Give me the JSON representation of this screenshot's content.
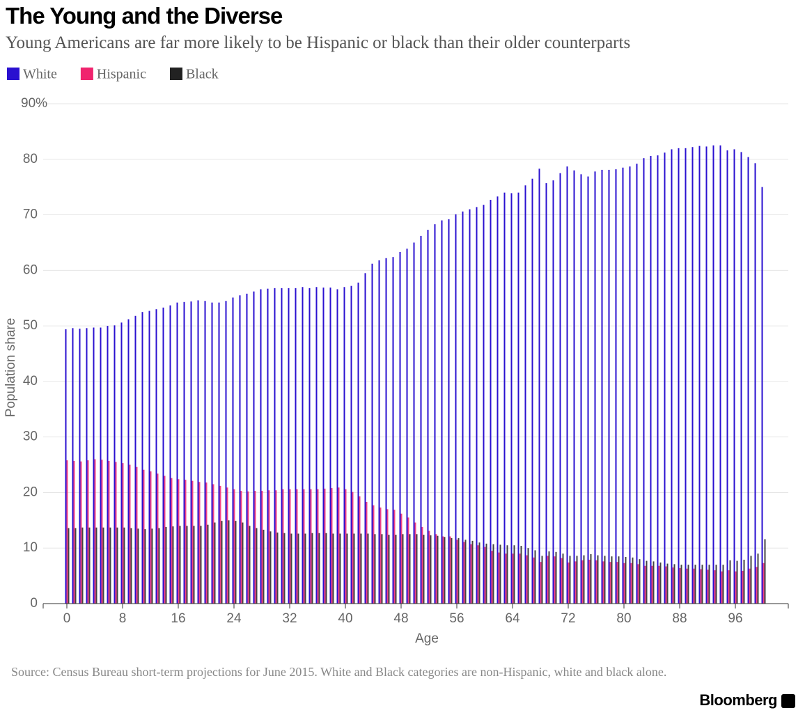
{
  "chart_data": {
    "type": "bar",
    "title": "The Young and the Diverse",
    "subtitle": "Young Americans are far more likely to be Hispanic or black than their older counterparts",
    "x_label": "Age",
    "y_label": "Population share",
    "source": "Source: Census Bureau short-term projections for June 2015. White and Black categories are non-Hispanic, white and black alone.",
    "brand": "Bloomberg",
    "x": [
      0,
      1,
      2,
      3,
      4,
      5,
      6,
      7,
      8,
      9,
      10,
      11,
      12,
      13,
      14,
      15,
      16,
      17,
      18,
      19,
      20,
      21,
      22,
      23,
      24,
      25,
      26,
      27,
      28,
      29,
      30,
      31,
      32,
      33,
      34,
      35,
      36,
      37,
      38,
      39,
      40,
      41,
      42,
      43,
      44,
      45,
      46,
      47,
      48,
      49,
      50,
      51,
      52,
      53,
      54,
      55,
      56,
      57,
      58,
      59,
      60,
      61,
      62,
      63,
      64,
      65,
      66,
      67,
      68,
      69,
      70,
      71,
      72,
      73,
      74,
      75,
      76,
      77,
      78,
      79,
      80,
      81,
      82,
      83,
      84,
      85,
      86,
      87,
      88,
      89,
      90,
      91,
      92,
      93,
      94,
      95,
      96,
      97,
      98,
      99,
      100
    ],
    "xlim": [
      -3.4,
      103.6
    ],
    "xticks": [
      0,
      8,
      16,
      24,
      32,
      40,
      48,
      56,
      64,
      72,
      80,
      88,
      96
    ],
    "ylim": [
      0,
      90
    ],
    "yticks": [
      0,
      10,
      20,
      30,
      40,
      50,
      60,
      70,
      80,
      {
        "value": 90,
        "label": "90%"
      }
    ],
    "grid": true,
    "series": [
      {
        "name": "White",
        "color": "#2a10d0",
        "values": [
          49.4,
          49.6,
          49.5,
          49.6,
          49.7,
          49.7,
          50.0,
          50.1,
          50.6,
          51.2,
          51.8,
          52.5,
          52.7,
          53.0,
          53.3,
          53.7,
          54.2,
          54.3,
          54.4,
          54.6,
          54.5,
          54.2,
          54.2,
          54.5,
          55.1,
          55.5,
          55.8,
          56.2,
          56.6,
          56.7,
          56.8,
          56.8,
          56.8,
          56.8,
          57.0,
          56.8,
          57.0,
          56.9,
          56.9,
          56.6,
          57.0,
          57.2,
          57.8,
          59.5,
          61.2,
          61.8,
          62.2,
          62.4,
          63.3,
          63.9,
          65.0,
          66.2,
          67.3,
          68.3,
          69.0,
          69.2,
          70.1,
          70.6,
          71.0,
          71.4,
          71.8,
          72.7,
          73.3,
          74.0,
          73.9,
          74.0,
          75.3,
          76.5,
          78.3,
          75.7,
          76.2,
          77.5,
          78.7,
          78.0,
          77.3,
          76.9,
          77.8,
          78.1,
          78.1,
          78.2,
          78.5,
          78.7,
          79.2,
          80.2,
          80.6,
          80.7,
          81.2,
          81.8,
          82.0,
          82.0,
          82.2,
          82.4,
          82.3,
          82.5,
          82.5,
          81.6,
          81.8,
          81.3,
          80.4,
          79.3,
          75.0
        ]
      },
      {
        "name": "Hispanic",
        "color": "#f0246e",
        "values": [
          25.8,
          25.7,
          25.6,
          25.8,
          26.0,
          25.9,
          25.7,
          25.5,
          25.3,
          25.0,
          24.6,
          24.1,
          23.8,
          23.4,
          23.0,
          22.6,
          22.4,
          22.3,
          22.1,
          21.9,
          21.8,
          21.5,
          21.2,
          20.9,
          20.6,
          20.3,
          20.2,
          20.3,
          20.3,
          20.4,
          20.4,
          20.6,
          20.6,
          20.6,
          20.6,
          20.6,
          20.6,
          20.7,
          20.8,
          20.9,
          20.6,
          20.1,
          19.3,
          18.3,
          17.7,
          17.3,
          17.0,
          16.9,
          16.2,
          15.5,
          14.6,
          13.8,
          13.1,
          12.5,
          12.1,
          12.1,
          11.5,
          11.1,
          10.7,
          10.5,
          10.2,
          9.5,
          9.2,
          9.0,
          9.0,
          9.0,
          8.7,
          8.3,
          7.5,
          8.6,
          8.5,
          8.2,
          7.4,
          7.6,
          7.8,
          7.9,
          7.8,
          7.6,
          7.5,
          7.5,
          7.3,
          7.3,
          7.1,
          6.8,
          6.8,
          6.8,
          6.7,
          6.5,
          6.4,
          6.3,
          6.3,
          6.2,
          6.1,
          6.0,
          5.8,
          6.0,
          5.8,
          5.9,
          6.3,
          6.6,
          7.3
        ]
      },
      {
        "name": "Black",
        "color": "#222222",
        "values": [
          13.6,
          13.6,
          13.7,
          13.7,
          13.7,
          13.7,
          13.7,
          13.7,
          13.7,
          13.6,
          13.5,
          13.4,
          13.5,
          13.6,
          13.8,
          13.9,
          14.0,
          14.0,
          14.0,
          14.0,
          14.2,
          14.6,
          14.9,
          15.0,
          14.9,
          14.6,
          14.0,
          13.6,
          13.3,
          13.0,
          12.8,
          12.7,
          12.6,
          12.6,
          12.6,
          12.7,
          12.7,
          12.7,
          12.6,
          12.6,
          12.6,
          12.6,
          12.6,
          12.6,
          12.5,
          12.5,
          12.4,
          12.4,
          12.5,
          12.5,
          12.5,
          12.4,
          12.3,
          12.2,
          12.0,
          11.8,
          11.8,
          11.5,
          11.3,
          11.0,
          10.8,
          10.7,
          10.6,
          10.5,
          10.5,
          10.4,
          10.0,
          9.6,
          8.6,
          9.4,
          9.3,
          9.0,
          8.6,
          8.6,
          8.7,
          8.9,
          8.7,
          8.6,
          8.5,
          8.5,
          8.4,
          8.3,
          8.0,
          7.7,
          7.6,
          7.4,
          7.2,
          7.1,
          7.0,
          7.0,
          7.0,
          7.0,
          7.0,
          7.0,
          7.0,
          7.8,
          7.7,
          7.9,
          8.6,
          9.0,
          11.6
        ]
      }
    ]
  }
}
